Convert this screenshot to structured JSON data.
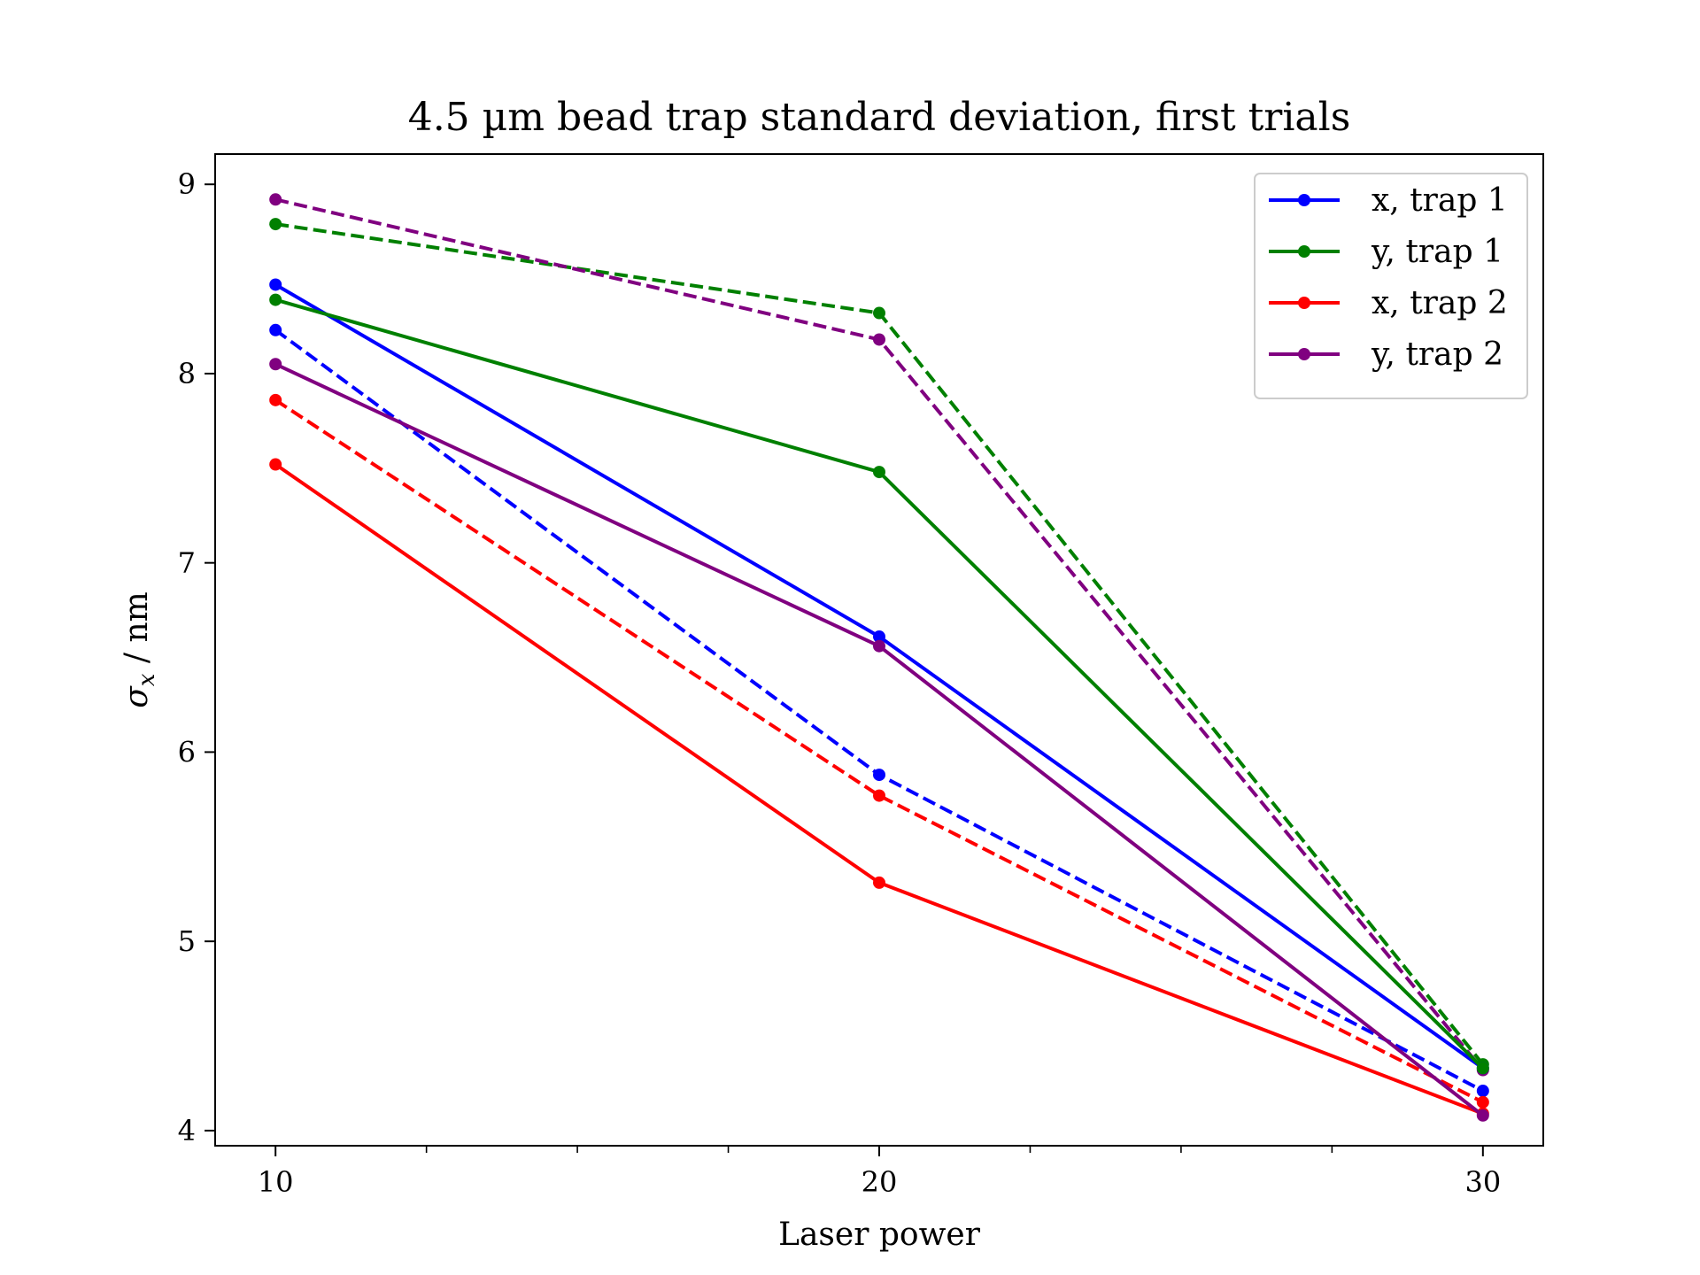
{
  "chart_data": {
    "type": "line",
    "title": "4.5 µm bead trap standard deviation, first trials",
    "xlabel": "Laser power",
    "ylabel": "σ_x / nm",
    "ylabel_parts": {
      "symbol": "σ",
      "subscript": "x",
      "rest": " / nm"
    },
    "x": [
      10,
      20,
      30
    ],
    "xlim": [
      9,
      31
    ],
    "ylim": [
      3.92,
      9.16
    ],
    "xticks": [
      10,
      20,
      30
    ],
    "xticks_minor": [
      12.5,
      15,
      17.5,
      22.5,
      25,
      27.5
    ],
    "yticks": [
      4,
      5,
      6,
      7,
      8,
      9
    ],
    "grid": false,
    "legend_position": "top-right",
    "series": [
      {
        "name": "x, trap 1",
        "color": "#0000ff",
        "style": "solid",
        "in_legend": true,
        "values": [
          8.47,
          6.61,
          4.33
        ]
      },
      {
        "name": "y, trap 1",
        "color": "#008000",
        "style": "solid",
        "in_legend": true,
        "values": [
          8.39,
          7.48,
          4.33
        ]
      },
      {
        "name": "x, trap 2",
        "color": "#ff0000",
        "style": "solid",
        "in_legend": true,
        "values": [
          7.52,
          5.31,
          4.09
        ]
      },
      {
        "name": "y, trap 2",
        "color": "#800080",
        "style": "solid",
        "in_legend": true,
        "values": [
          8.05,
          6.56,
          4.08
        ]
      },
      {
        "name": "",
        "color": "#0000ff",
        "style": "dashed",
        "in_legend": false,
        "values": [
          8.23,
          5.88,
          4.21
        ]
      },
      {
        "name": "",
        "color": "#008000",
        "style": "dashed",
        "in_legend": false,
        "values": [
          8.79,
          8.32,
          4.35
        ]
      },
      {
        "name": "",
        "color": "#ff0000",
        "style": "dashed",
        "in_legend": false,
        "values": [
          7.86,
          5.77,
          4.15
        ]
      },
      {
        "name": "",
        "color": "#800080",
        "style": "dashed",
        "in_legend": false,
        "values": [
          8.92,
          8.18,
          4.32
        ]
      }
    ]
  }
}
